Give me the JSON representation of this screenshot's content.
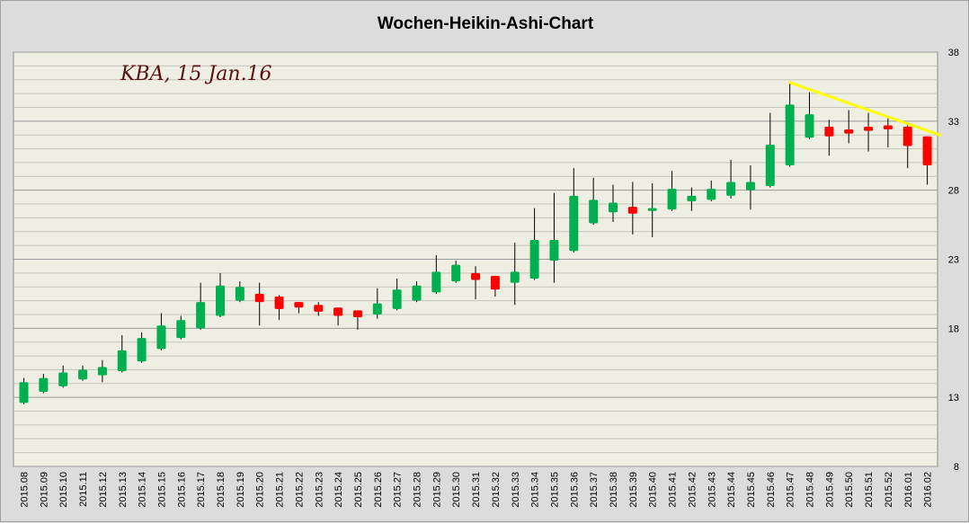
{
  "chart_data": {
    "type": "candlestick",
    "title": "Wochen-Heikin-Ashi-Chart",
    "annotation": "KBA, 15 Jan.16",
    "ylim": [
      8,
      38
    ],
    "yticks": [
      8,
      13,
      18,
      23,
      28,
      33,
      38
    ],
    "grid": true,
    "y_axis_side": "right",
    "colors": {
      "up": "#00b050",
      "down": "#ff0000",
      "wick": "#000000",
      "trendline": "#ffff00",
      "plot_background": "#efeee2",
      "grid_major": "#9a9a9a",
      "grid_minor": "#c4c4b8"
    },
    "trendline": {
      "from": {
        "x": "2015.47",
        "y": 35.8
      },
      "to": {
        "x": "2016.02",
        "y": 32.0
      }
    },
    "categories": [
      "2015.08",
      "2015.09",
      "2015.10",
      "2015.11",
      "2015.12",
      "2015.13",
      "2015.14",
      "2015.15",
      "2015.16",
      "2015.17",
      "2015.18",
      "2015.19",
      "2015.20",
      "2015.21",
      "2015.22",
      "2015.23",
      "2015.24",
      "2015.25",
      "2015.26",
      "2015.27",
      "2015.28",
      "2015.29",
      "2015.30",
      "2015.31",
      "2015.32",
      "2015.33",
      "2015.34",
      "2015.35",
      "2015.36",
      "2015.37",
      "2015.38",
      "2015.39",
      "2015.40",
      "2015.41",
      "2015.42",
      "2015.43",
      "2015.44",
      "2015.45",
      "2015.46",
      "2015.47",
      "2015.48",
      "2015.49",
      "2015.50",
      "2015.51",
      "2015.52",
      "2016.01",
      "2016.02"
    ],
    "candles": [
      {
        "x": "2015.08",
        "open": 12.6,
        "close": 14.1,
        "high": 14.4,
        "low": 12.5
      },
      {
        "x": "2015.09",
        "open": 13.4,
        "close": 14.4,
        "high": 14.7,
        "low": 13.3
      },
      {
        "x": "2015.10",
        "open": 13.8,
        "close": 14.8,
        "high": 15.3,
        "low": 13.7
      },
      {
        "x": "2015.11",
        "open": 14.3,
        "close": 15.0,
        "high": 15.3,
        "low": 14.2
      },
      {
        "x": "2015.12",
        "open": 14.6,
        "close": 15.2,
        "high": 15.7,
        "low": 14.1
      },
      {
        "x": "2015.13",
        "open": 14.9,
        "close": 16.4,
        "high": 17.5,
        "low": 14.8
      },
      {
        "x": "2015.14",
        "open": 15.6,
        "close": 17.3,
        "high": 17.7,
        "low": 15.5
      },
      {
        "x": "2015.15",
        "open": 16.5,
        "close": 18.2,
        "high": 19.1,
        "low": 16.4
      },
      {
        "x": "2015.16",
        "open": 17.3,
        "close": 18.6,
        "high": 18.9,
        "low": 17.2
      },
      {
        "x": "2015.17",
        "open": 18.0,
        "close": 19.9,
        "high": 21.3,
        "low": 17.9
      },
      {
        "x": "2015.18",
        "open": 18.9,
        "close": 21.1,
        "high": 22.0,
        "low": 18.8
      },
      {
        "x": "2015.19",
        "open": 20.0,
        "close": 21.0,
        "high": 21.4,
        "low": 19.9
      },
      {
        "x": "2015.20",
        "open": 20.5,
        "close": 19.9,
        "high": 21.3,
        "low": 18.2
      },
      {
        "x": "2015.21",
        "open": 20.3,
        "close": 19.4,
        "high": 20.4,
        "low": 18.6
      },
      {
        "x": "2015.22",
        "open": 19.9,
        "close": 19.5,
        "high": 19.9,
        "low": 19.1
      },
      {
        "x": "2015.23",
        "open": 19.7,
        "close": 19.2,
        "high": 19.9,
        "low": 18.9
      },
      {
        "x": "2015.24",
        "open": 19.5,
        "close": 18.9,
        "high": 19.5,
        "low": 18.2
      },
      {
        "x": "2015.25",
        "open": 19.3,
        "close": 18.8,
        "high": 19.3,
        "low": 17.9
      },
      {
        "x": "2015.26",
        "open": 19.0,
        "close": 19.8,
        "high": 20.9,
        "low": 18.7
      },
      {
        "x": "2015.27",
        "open": 19.4,
        "close": 20.8,
        "high": 21.6,
        "low": 19.3
      },
      {
        "x": "2015.28",
        "open": 20.0,
        "close": 21.1,
        "high": 21.4,
        "low": 19.9
      },
      {
        "x": "2015.29",
        "open": 20.6,
        "close": 22.1,
        "high": 23.3,
        "low": 20.5
      },
      {
        "x": "2015.30",
        "open": 21.4,
        "close": 22.6,
        "high": 22.9,
        "low": 21.3
      },
      {
        "x": "2015.31",
        "open": 22.0,
        "close": 21.5,
        "high": 22.5,
        "low": 20.1
      },
      {
        "x": "2015.32",
        "open": 21.8,
        "close": 20.8,
        "high": 21.8,
        "low": 20.3
      },
      {
        "x": "2015.33",
        "open": 21.3,
        "close": 22.1,
        "high": 24.2,
        "low": 19.7
      },
      {
        "x": "2015.34",
        "open": 21.6,
        "close": 24.4,
        "high": 26.7,
        "low": 21.5
      },
      {
        "x": "2015.35",
        "open": 22.9,
        "close": 24.4,
        "high": 27.8,
        "low": 21.3
      },
      {
        "x": "2015.36",
        "open": 23.6,
        "close": 27.6,
        "high": 29.6,
        "low": 23.5
      },
      {
        "x": "2015.37",
        "open": 25.6,
        "close": 27.3,
        "high": 28.9,
        "low": 25.5
      },
      {
        "x": "2015.38",
        "open": 26.4,
        "close": 27.1,
        "high": 28.4,
        "low": 25.7
      },
      {
        "x": "2015.39",
        "open": 26.8,
        "close": 26.3,
        "high": 28.6,
        "low": 24.8
      },
      {
        "x": "2015.40",
        "open": 26.5,
        "close": 26.7,
        "high": 28.5,
        "low": 24.6
      },
      {
        "x": "2015.41",
        "open": 26.6,
        "close": 28.1,
        "high": 29.4,
        "low": 26.5
      },
      {
        "x": "2015.42",
        "open": 27.2,
        "close": 27.6,
        "high": 28.2,
        "low": 26.5
      },
      {
        "x": "2015.43",
        "open": 27.3,
        "close": 28.1,
        "high": 28.7,
        "low": 27.2
      },
      {
        "x": "2015.44",
        "open": 27.6,
        "close": 28.6,
        "high": 30.2,
        "low": 27.4
      },
      {
        "x": "2015.45",
        "open": 28.0,
        "close": 28.6,
        "high": 29.8,
        "low": 26.6
      },
      {
        "x": "2015.46",
        "open": 28.3,
        "close": 31.3,
        "high": 33.6,
        "low": 28.2
      },
      {
        "x": "2015.47",
        "open": 29.8,
        "close": 34.2,
        "high": 35.9,
        "low": 29.7
      },
      {
        "x": "2015.48",
        "open": 31.8,
        "close": 33.5,
        "high": 35.1,
        "low": 31.7
      },
      {
        "x": "2015.49",
        "open": 32.6,
        "close": 31.9,
        "high": 33.1,
        "low": 30.5
      },
      {
        "x": "2015.50",
        "open": 32.4,
        "close": 32.1,
        "high": 33.8,
        "low": 31.4
      },
      {
        "x": "2015.51",
        "open": 32.6,
        "close": 32.3,
        "high": 33.6,
        "low": 30.8
      },
      {
        "x": "2015.52",
        "open": 32.7,
        "close": 32.4,
        "high": 33.2,
        "low": 31.1
      },
      {
        "x": "2016.01",
        "open": 32.6,
        "close": 31.2,
        "high": 32.7,
        "low": 29.6
      },
      {
        "x": "2016.02",
        "open": 31.9,
        "close": 29.8,
        "high": 31.9,
        "low": 28.4
      }
    ]
  }
}
